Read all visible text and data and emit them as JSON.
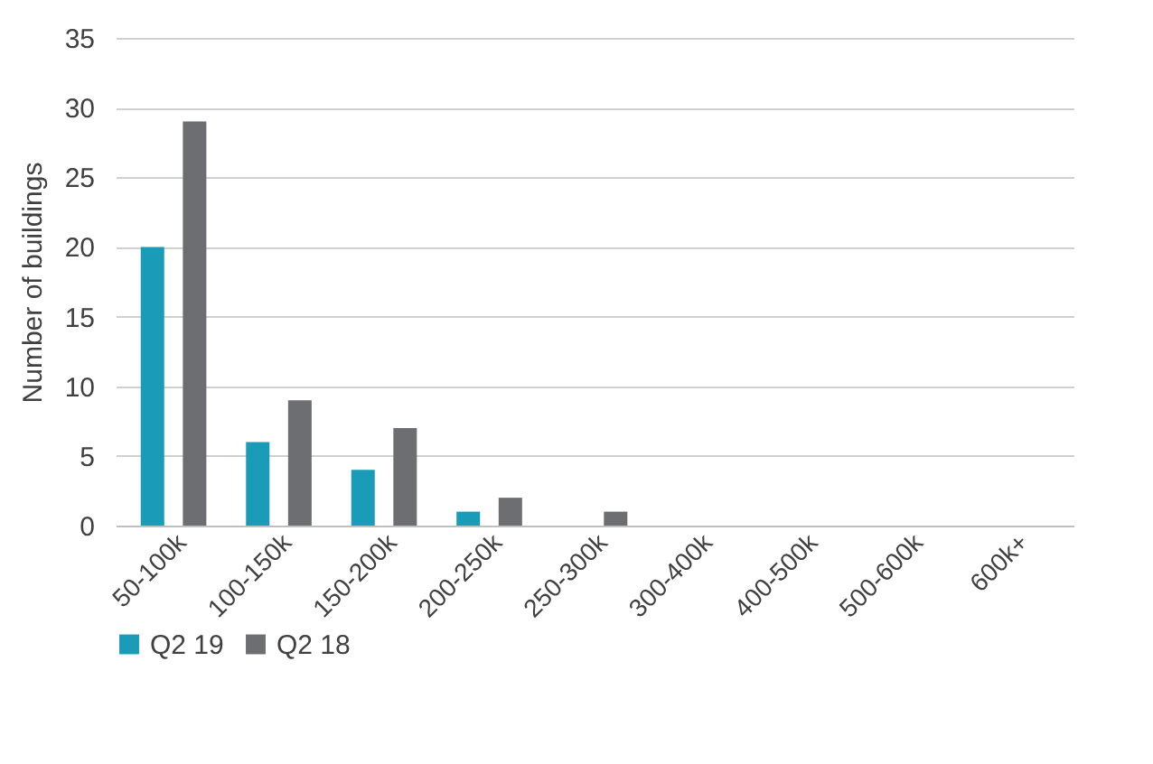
{
  "chart_data": {
    "type": "bar",
    "ylabel": "Number of buildings",
    "categories": [
      "50-100k",
      "100-150k",
      "150-200k",
      "200-250k",
      "250-300k",
      "300-400k",
      "400-500k",
      "500-600k",
      "600k+"
    ],
    "series": [
      {
        "name": "Q2 19",
        "color": "#1a9bb8",
        "values": [
          20,
          6,
          4,
          1,
          0,
          0,
          0,
          0,
          0
        ]
      },
      {
        "name": "Q2 18",
        "color": "#6d6e71",
        "values": [
          29,
          9,
          7,
          2,
          1,
          0,
          0,
          0,
          0
        ]
      }
    ],
    "ylim": [
      0,
      35
    ],
    "yticks": [
      0,
      5,
      10,
      15,
      20,
      25,
      30,
      35
    ],
    "grid": "y",
    "legend": "bottom"
  }
}
